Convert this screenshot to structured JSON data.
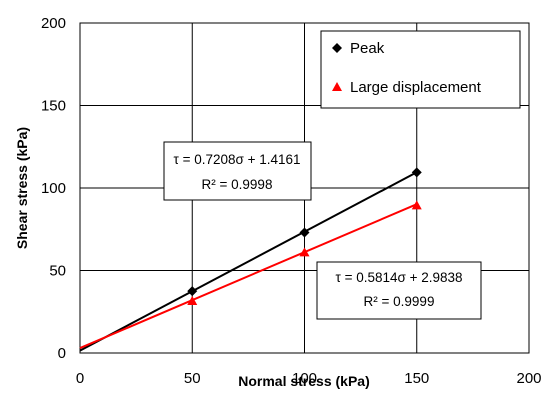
{
  "chart_data": {
    "type": "line",
    "title": "",
    "xlabel": "Normal stress (kPa)",
    "ylabel": "Shear stress (kPa)",
    "xlim": [
      0,
      200
    ],
    "ylim": [
      0,
      200
    ],
    "xticks": [
      "0",
      "50",
      "100",
      "150",
      "200"
    ],
    "yticks": [
      "0",
      "50",
      "100",
      "150",
      "200"
    ],
    "grid": true,
    "legend_position": "top-right",
    "series": [
      {
        "name": "Peak",
        "color": "#000000",
        "marker": "diamond",
        "points": [
          {
            "x": 50,
            "y": 37.5
          },
          {
            "x": 100,
            "y": 73.0
          },
          {
            "x": 150,
            "y": 109.5
          }
        ],
        "fit": {
          "slope": 0.7208,
          "intercept": 1.4161
        },
        "equation": "τ = 0.7208σ + 1.4161",
        "r2": "R² = 0.9998"
      },
      {
        "name": "Large displacement",
        "color": "#ff0000",
        "marker": "triangle",
        "points": [
          {
            "x": 50,
            "y": 31.5
          },
          {
            "x": 100,
            "y": 61.0
          },
          {
            "x": 150,
            "y": 89.5
          }
        ],
        "fit": {
          "slope": 0.5814,
          "intercept": 2.9838
        },
        "equation": "τ = 0.5814σ + 2.9838",
        "r2": "R² = 0.9999"
      }
    ]
  }
}
